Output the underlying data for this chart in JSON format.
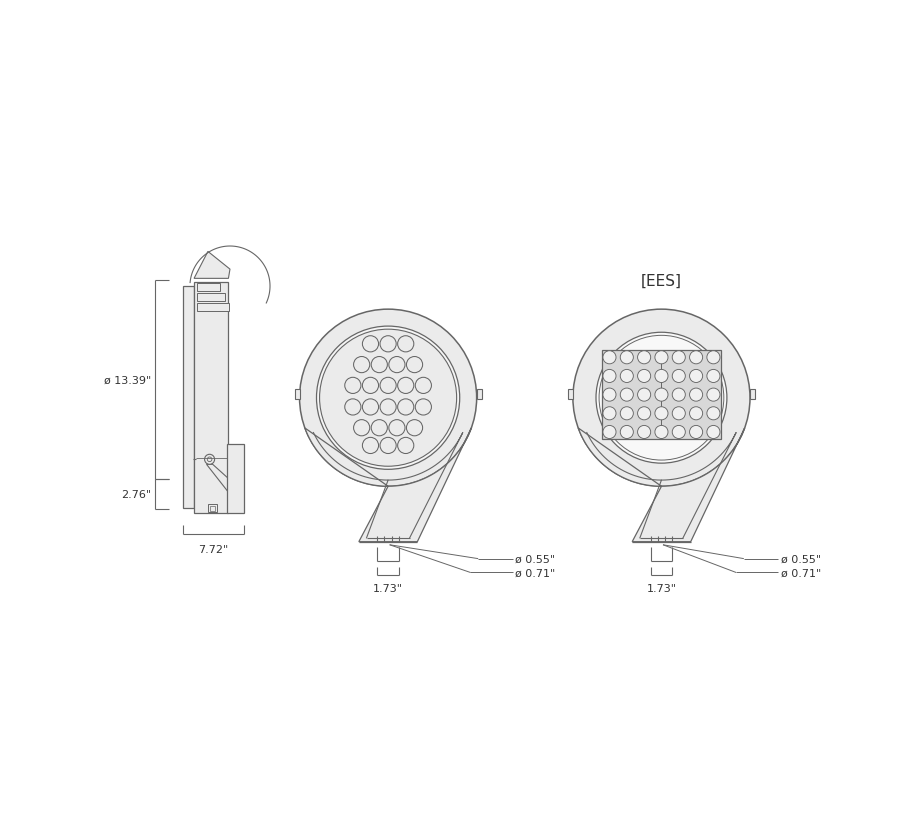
{
  "bg_color": "#ffffff",
  "line_color": "#666666",
  "fill_light": "#ebebeb",
  "fill_mid": "#d8d8d8",
  "dim_color": "#333333",
  "ees_label": "[EES]",
  "dim_width": "7.72\"",
  "dim_height_top": "ø 13.39\"",
  "dim_height_bot": "2.76\"",
  "dim_055": "ø 0.55\"",
  "dim_071": "ø 0.71\"",
  "dim_173": "1.73\""
}
